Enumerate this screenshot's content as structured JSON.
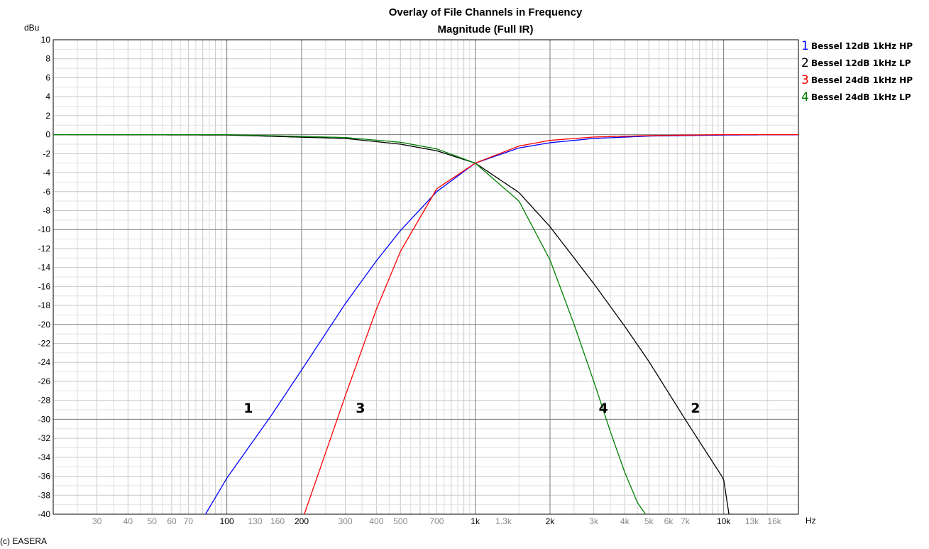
{
  "chart_data": {
    "type": "line",
    "title": "Overlay of File Channels in Frequency",
    "subtitle": "Magnitude (Full IR)",
    "ylabel": "dBu",
    "xlabel": "Hz",
    "xscale": "log",
    "xlim": [
      20,
      20000
    ],
    "ylim": [
      -40,
      10
    ],
    "grid": true,
    "legend_position": "right",
    "y_ticks": [
      10,
      8,
      6,
      4,
      2,
      0,
      -2,
      -4,
      -6,
      -8,
      -10,
      -12,
      -14,
      -16,
      -18,
      -20,
      -22,
      -24,
      -26,
      -28,
      -30,
      -32,
      -34,
      -36,
      -38,
      -40
    ],
    "x_ticks": [
      {
        "value": 30,
        "label": "30",
        "major": false
      },
      {
        "value": 40,
        "label": "40",
        "major": false
      },
      {
        "value": 50,
        "label": "50",
        "major": false
      },
      {
        "value": 60,
        "label": "60",
        "major": false
      },
      {
        "value": 70,
        "label": "70",
        "major": false
      },
      {
        "value": 100,
        "label": "100",
        "major": true
      },
      {
        "value": 130,
        "label": "130",
        "major": false
      },
      {
        "value": 160,
        "label": "160",
        "major": false
      },
      {
        "value": 200,
        "label": "200",
        "major": true
      },
      {
        "value": 300,
        "label": "300",
        "major": false
      },
      {
        "value": 400,
        "label": "400",
        "major": false
      },
      {
        "value": 500,
        "label": "500",
        "major": false
      },
      {
        "value": 700,
        "label": "700",
        "major": false
      },
      {
        "value": 1000,
        "label": "1k",
        "major": true
      },
      {
        "value": 1300,
        "label": "1.3k",
        "major": false
      },
      {
        "value": 2000,
        "label": "2k",
        "major": true
      },
      {
        "value": 3000,
        "label": "3k",
        "major": false
      },
      {
        "value": 4000,
        "label": "4k",
        "major": false
      },
      {
        "value": 5000,
        "label": "5k",
        "major": false
      },
      {
        "value": 6000,
        "label": "6k",
        "major": false
      },
      {
        "value": 7000,
        "label": "7k",
        "major": false
      },
      {
        "value": 10000,
        "label": "10k",
        "major": true
      },
      {
        "value": 13000,
        "label": "13k",
        "major": false
      },
      {
        "value": 16000,
        "label": "16k",
        "major": false
      }
    ],
    "series": [
      {
        "name": "Bessel 12dB 1kHz HP",
        "number": "1",
        "color": "#0000ff",
        "x": [
          82,
          100,
          150,
          200,
          300,
          400,
          500,
          700,
          1000,
          1500,
          2000,
          3000,
          5000,
          10000,
          20000
        ],
        "y": [
          -40,
          -36.2,
          -29.7,
          -24.8,
          -17.8,
          -13.3,
          -10.1,
          -6.0,
          -3.0,
          -1.4,
          -0.85,
          -0.4,
          -0.15,
          -0.04,
          -0.01
        ]
      },
      {
        "name": "Bessel 12dB 1kHz LP",
        "number": "2",
        "color": "#000000",
        "x": [
          20,
          100,
          300,
          500,
          700,
          1000,
          1500,
          2000,
          3000,
          4000,
          5000,
          7000,
          10000,
          10500
        ],
        "y": [
          0,
          -0.04,
          -0.4,
          -1.0,
          -1.7,
          -3.0,
          -6.1,
          -9.7,
          -15.7,
          -20.2,
          -23.9,
          -30.0,
          -36.3,
          -40
        ]
      },
      {
        "name": "Bessel 24dB 1kHz HP",
        "number": "3",
        "color": "#ff0000",
        "x": [
          205,
          250,
          300,
          400,
          500,
          700,
          1000,
          1500,
          2000,
          3000,
          5000,
          10000,
          20000
        ],
        "y": [
          -40,
          -33.5,
          -27.5,
          -18.4,
          -12.3,
          -5.7,
          -3.0,
          -1.2,
          -0.6,
          -0.25,
          -0.1,
          0,
          0
        ]
      },
      {
        "name": "Bessel 24dB 1kHz LP",
        "number": "4",
        "color": "#008000",
        "x": [
          20,
          100,
          300,
          500,
          700,
          1000,
          1500,
          2000,
          2500,
          3000,
          3500,
          4000,
          4500,
          4850
        ],
        "y": [
          0,
          0,
          -0.3,
          -0.8,
          -1.5,
          -3.0,
          -7.0,
          -13.2,
          -20.0,
          -26.0,
          -31.3,
          -35.6,
          -38.8,
          -40
        ]
      }
    ],
    "annotations": [
      {
        "text": "1",
        "x": 122,
        "y": -29.3
      },
      {
        "text": "3",
        "x": 345,
        "y": -29.3
      },
      {
        "text": "4",
        "x": 3280,
        "y": -29.3
      },
      {
        "text": "2",
        "x": 7700,
        "y": -29.3
      }
    ]
  },
  "credit": "(c) EASERA"
}
